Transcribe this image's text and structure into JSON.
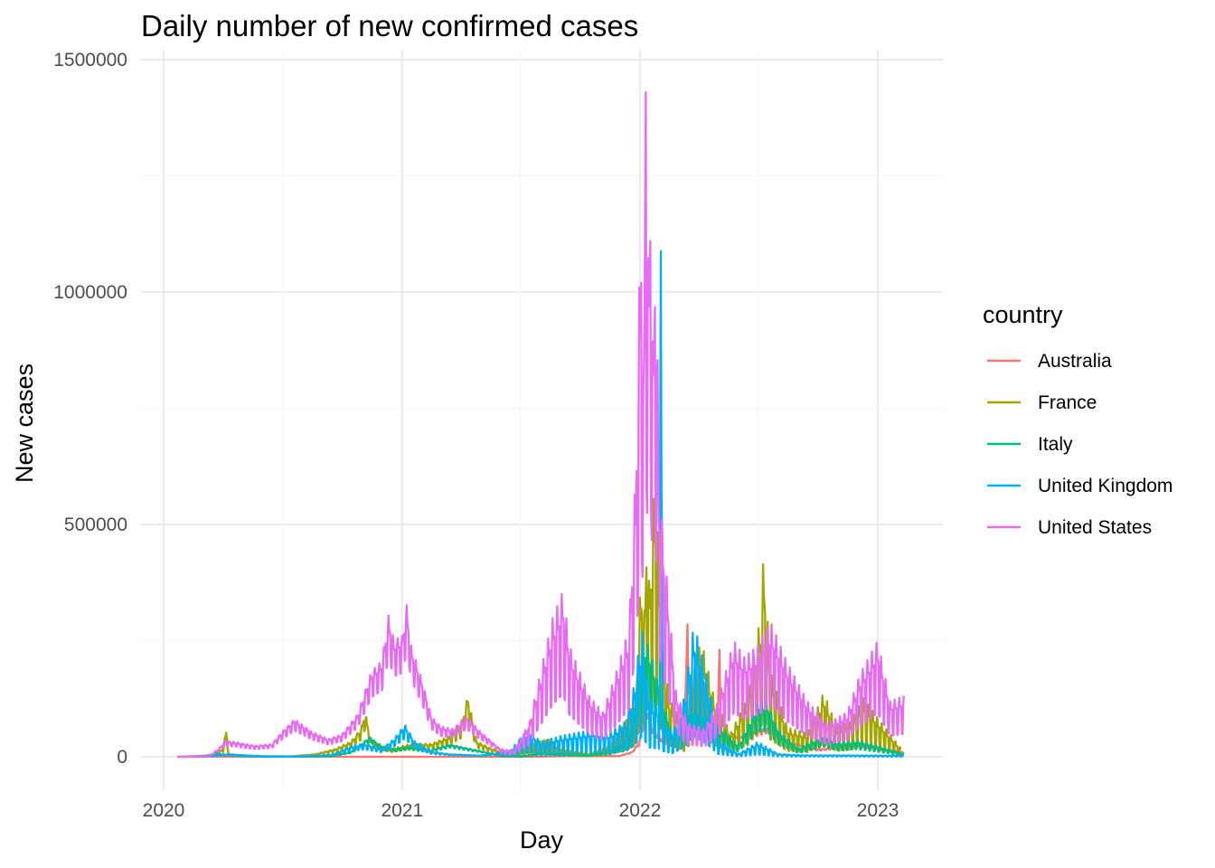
{
  "chart_data": {
    "type": "line",
    "title": "Daily number of new confirmed cases",
    "xlabel": "Day",
    "ylabel": "New cases",
    "x_ticks": [
      "2020",
      "2021",
      "2022",
      "2023"
    ],
    "y_ticks": [
      "0",
      "500000",
      "1000000",
      "1500000"
    ],
    "xlim": [
      "2020-01-01",
      "2023-02-15"
    ],
    "ylim": [
      0,
      1500000
    ],
    "grid": true,
    "legend": {
      "title": "country",
      "position": "right"
    },
    "series": [
      {
        "name": "Australia",
        "color": "#F8766D",
        "points": [
          [
            "2020-01-22",
            0
          ],
          [
            "2020-03-25",
            400
          ],
          [
            "2020-04-15",
            50
          ],
          [
            "2020-07-01",
            100
          ],
          [
            "2020-08-05",
            700
          ],
          [
            "2020-09-15",
            50
          ],
          [
            "2021-06-01",
            20
          ],
          [
            "2021-08-01",
            300
          ],
          [
            "2021-09-15",
            1800
          ],
          [
            "2021-10-15",
            1500
          ],
          [
            "2021-11-30",
            1500
          ],
          [
            "2021-12-20",
            10000
          ],
          [
            "2021-12-31",
            30000
          ],
          [
            "2022-01-06",
            70000
          ],
          [
            "2022-01-13",
            100000
          ],
          [
            "2022-01-20",
            60000
          ],
          [
            "2022-02-01",
            40000
          ],
          [
            "2022-02-20",
            25000
          ],
          [
            "2022-03-10",
            40000
          ],
          [
            "2022-03-15",
            285000
          ],
          [
            "2022-03-20",
            60000
          ],
          [
            "2022-04-05",
            65000
          ],
          [
            "2022-04-30",
            50000
          ],
          [
            "2022-05-03",
            230000
          ],
          [
            "2022-05-06",
            50000
          ],
          [
            "2022-06-01",
            40000
          ],
          [
            "2022-07-15",
            60000
          ],
          [
            "2022-08-15",
            30000
          ],
          [
            "2022-10-01",
            15000
          ],
          [
            "2022-11-01",
            20000
          ],
          [
            "2022-12-01",
            25000
          ],
          [
            "2023-01-10",
            15000
          ],
          [
            "2023-02-10",
            10000
          ]
        ]
      },
      {
        "name": "France",
        "color": "#A3A500",
        "points": [
          [
            "2020-01-24",
            0
          ],
          [
            "2020-03-15",
            3000
          ],
          [
            "2020-04-01",
            15000
          ],
          [
            "2020-04-06",
            52000
          ],
          [
            "2020-04-10",
            5000
          ],
          [
            "2020-05-15",
            1000
          ],
          [
            "2020-07-15",
            1000
          ],
          [
            "2020-08-20",
            5000
          ],
          [
            "2020-09-20",
            15000
          ],
          [
            "2020-10-15",
            30000
          ],
          [
            "2020-10-30",
            55000
          ],
          [
            "2020-11-05",
            88000
          ],
          [
            "2020-11-15",
            30000
          ],
          [
            "2020-12-15",
            15000
          ],
          [
            "2021-01-15",
            25000
          ],
          [
            "2021-02-15",
            25000
          ],
          [
            "2021-03-15",
            40000
          ],
          [
            "2021-04-01",
            60000
          ],
          [
            "2021-04-12",
            118000
          ],
          [
            "2021-04-25",
            30000
          ],
          [
            "2021-05-20",
            15000
          ],
          [
            "2021-06-15",
            3000
          ],
          [
            "2021-07-20",
            25000
          ],
          [
            "2021-08-15",
            30000
          ],
          [
            "2021-09-01",
            15000
          ],
          [
            "2021-10-15",
            5000
          ],
          [
            "2021-11-15",
            20000
          ],
          [
            "2021-12-10",
            60000
          ],
          [
            "2021-12-25",
            100000
          ],
          [
            "2022-01-03",
            320000
          ],
          [
            "2022-01-08",
            250000
          ],
          [
            "2022-01-12",
            460000
          ],
          [
            "2022-01-15",
            300000
          ],
          [
            "2022-01-25",
            500000
          ],
          [
            "2022-02-05",
            180000
          ],
          [
            "2022-02-15",
            100000
          ],
          [
            "2022-03-10",
            50000
          ],
          [
            "2022-03-25",
            150000
          ],
          [
            "2022-04-05",
            200000
          ],
          [
            "2022-04-25",
            100000
          ],
          [
            "2022-05-20",
            40000
          ],
          [
            "2022-06-15",
            100000
          ],
          [
            "2022-07-05",
            240000
          ],
          [
            "2022-07-10",
            350000
          ],
          [
            "2022-07-20",
            150000
          ],
          [
            "2022-08-15",
            50000
          ],
          [
            "2022-09-15",
            40000
          ],
          [
            "2022-10-10",
            110000
          ],
          [
            "2022-10-30",
            50000
          ],
          [
            "2022-11-20",
            60000
          ],
          [
            "2022-12-10",
            100000
          ],
          [
            "2023-01-05",
            60000
          ],
          [
            "2023-02-05",
            15000
          ]
        ]
      },
      {
        "name": "Italy",
        "color": "#00BF7D",
        "points": [
          [
            "2020-01-31",
            0
          ],
          [
            "2020-03-01",
            1000
          ],
          [
            "2020-03-21",
            6500
          ],
          [
            "2020-04-15",
            3000
          ],
          [
            "2020-06-01",
            300
          ],
          [
            "2020-08-01",
            400
          ],
          [
            "2020-09-15",
            1500
          ],
          [
            "2020-10-15",
            10000
          ],
          [
            "2020-11-13",
            40000
          ],
          [
            "2020-12-01",
            20000
          ],
          [
            "2020-12-20",
            15000
          ],
          [
            "2021-01-10",
            20000
          ],
          [
            "2021-02-10",
            12000
          ],
          [
            "2021-03-15",
            25000
          ],
          [
            "2021-04-01",
            20000
          ],
          [
            "2021-05-01",
            12000
          ],
          [
            "2021-06-01",
            2000
          ],
          [
            "2021-07-01",
            1000
          ],
          [
            "2021-08-01",
            6000
          ],
          [
            "2021-09-01",
            5000
          ],
          [
            "2021-10-15",
            3000
          ],
          [
            "2021-11-15",
            10000
          ],
          [
            "2021-12-15",
            30000
          ],
          [
            "2021-12-31",
            145000
          ],
          [
            "2022-01-10",
            220000
          ],
          [
            "2022-01-20",
            180000
          ],
          [
            "2022-02-01",
            120000
          ],
          [
            "2022-02-20",
            40000
          ],
          [
            "2022-03-20",
            80000
          ],
          [
            "2022-04-01",
            75000
          ],
          [
            "2022-05-01",
            60000
          ],
          [
            "2022-06-01",
            20000
          ],
          [
            "2022-07-01",
            100000
          ],
          [
            "2022-07-15",
            100000
          ],
          [
            "2022-08-01",
            50000
          ],
          [
            "2022-09-01",
            15000
          ],
          [
            "2022-10-10",
            40000
          ],
          [
            "2022-11-01",
            25000
          ],
          [
            "2022-12-01",
            30000
          ],
          [
            "2023-01-01",
            20000
          ],
          [
            "2023-02-10",
            5000
          ]
        ]
      },
      {
        "name": "United Kingdom",
        "color": "#00B0F6",
        "points": [
          [
            "2020-01-31",
            0
          ],
          [
            "2020-03-01",
            100
          ],
          [
            "2020-04-10",
            5000
          ],
          [
            "2020-06-01",
            1000
          ],
          [
            "2020-08-01",
            800
          ],
          [
            "2020-09-15",
            4000
          ],
          [
            "2020-10-15",
            20000
          ],
          [
            "2020-11-05",
            25000
          ],
          [
            "2020-12-01",
            15000
          ],
          [
            "2020-12-20",
            35000
          ],
          [
            "2021-01-01",
            55000
          ],
          [
            "2021-01-05",
            62000
          ],
          [
            "2021-01-20",
            30000
          ],
          [
            "2021-02-15",
            10000
          ],
          [
            "2021-03-15",
            5000
          ],
          [
            "2021-05-01",
            2500
          ],
          [
            "2021-06-15",
            10000
          ],
          [
            "2021-07-15",
            48000
          ],
          [
            "2021-08-01",
            25000
          ],
          [
            "2021-09-01",
            35000
          ],
          [
            "2021-10-20",
            45000
          ],
          [
            "2021-11-15",
            40000
          ],
          [
            "2021-12-10",
            60000
          ],
          [
            "2021-12-23",
            120000
          ],
          [
            "2022-01-04",
            220000
          ],
          [
            "2022-01-15",
            100000
          ],
          [
            "2022-01-30",
            85000
          ],
          [
            "2022-02-01",
            660000
          ],
          [
            "2022-02-02",
            850000
          ],
          [
            "2022-02-05",
            60000
          ],
          [
            "2022-02-20",
            40000
          ],
          [
            "2022-03-10",
            100000
          ],
          [
            "2022-03-25",
            225000
          ],
          [
            "2022-04-15",
            130000
          ],
          [
            "2022-05-01",
            30000
          ],
          [
            "2022-06-01",
            5000
          ],
          [
            "2022-07-01",
            25000
          ],
          [
            "2022-08-01",
            5000
          ],
          [
            "2022-09-01",
            3000
          ],
          [
            "2023-02-10",
            2000
          ]
        ]
      },
      {
        "name": "United States",
        "color": "#E76BF3",
        "points": [
          [
            "2020-01-22",
            0
          ],
          [
            "2020-03-10",
            1000
          ],
          [
            "2020-03-25",
            15000
          ],
          [
            "2020-04-05",
            32000
          ],
          [
            "2020-04-25",
            28000
          ],
          [
            "2020-05-20",
            22000
          ],
          [
            "2020-06-15",
            25000
          ],
          [
            "2020-07-01",
            50000
          ],
          [
            "2020-07-20",
            75000
          ],
          [
            "2020-08-15",
            50000
          ],
          [
            "2020-09-10",
            35000
          ],
          [
            "2020-10-01",
            45000
          ],
          [
            "2020-10-25",
            85000
          ],
          [
            "2020-11-15",
            170000
          ],
          [
            "2020-12-01",
            190000
          ],
          [
            "2020-12-11",
            280000
          ],
          [
            "2020-12-20",
            230000
          ],
          [
            "2021-01-01",
            240000
          ],
          [
            "2021-01-08",
            300000
          ],
          [
            "2021-01-15",
            220000
          ],
          [
            "2021-02-01",
            150000
          ],
          [
            "2021-02-15",
            80000
          ],
          [
            "2021-03-01",
            60000
          ],
          [
            "2021-03-20",
            55000
          ],
          [
            "2021-04-10",
            80000
          ],
          [
            "2021-05-01",
            50000
          ],
          [
            "2021-06-01",
            15000
          ],
          [
            "2021-06-20",
            10000
          ],
          [
            "2021-07-15",
            60000
          ],
          [
            "2021-08-01",
            150000
          ],
          [
            "2021-08-20",
            250000
          ],
          [
            "2021-09-05",
            300000
          ],
          [
            "2021-09-15",
            200000
          ],
          [
            "2021-10-15",
            110000
          ],
          [
            "2021-11-05",
            80000
          ],
          [
            "2021-11-25",
            150000
          ],
          [
            "2021-12-15",
            230000
          ],
          [
            "2021-12-25",
            500000
          ],
          [
            "2022-01-03",
            1020000
          ],
          [
            "2022-01-07",
            700000
          ],
          [
            "2022-01-10",
            1430000
          ],
          [
            "2022-01-14",
            900000
          ],
          [
            "2022-01-18",
            1180000
          ],
          [
            "2022-01-21",
            750000
          ],
          [
            "2022-01-25",
            1040000
          ],
          [
            "2022-01-30",
            500000
          ],
          [
            "2022-02-10",
            340000
          ],
          [
            "2022-02-25",
            120000
          ],
          [
            "2022-03-15",
            60000
          ],
          [
            "2022-04-10",
            50000
          ],
          [
            "2022-05-01",
            100000
          ],
          [
            "2022-05-25",
            210000
          ],
          [
            "2022-06-10",
            180000
          ],
          [
            "2022-07-01",
            200000
          ],
          [
            "2022-07-20",
            245000
          ],
          [
            "2022-08-15",
            170000
          ],
          [
            "2022-09-15",
            100000
          ],
          [
            "2022-10-15",
            60000
          ],
          [
            "2022-11-15",
            80000
          ],
          [
            "2022-12-05",
            150000
          ],
          [
            "2023-01-01",
            210000
          ],
          [
            "2023-01-20",
            100000
          ],
          [
            "2023-02-10",
            110000
          ]
        ]
      }
    ]
  }
}
